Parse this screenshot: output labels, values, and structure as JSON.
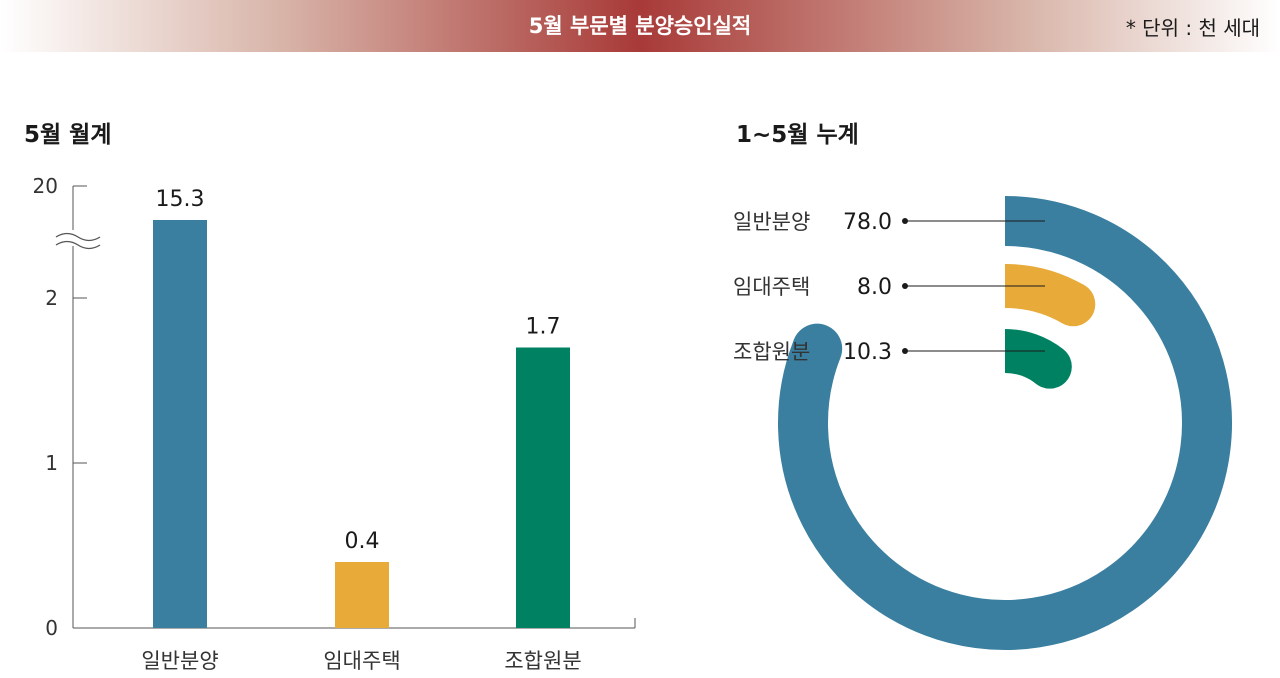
{
  "header": {
    "title": "5월 부문별 분양승인실적",
    "unit_note": "* 단위 : 천 세대"
  },
  "colors": {
    "general": "#3a7fa0",
    "rental": "#e8ab3a",
    "union": "#008262",
    "banner": "#a83a38"
  },
  "chart_data": [
    {
      "type": "bar",
      "title": "5월 월계",
      "categories": [
        "일반분양",
        "임대주택",
        "조합원분"
      ],
      "values": [
        15.3,
        0.4,
        1.7
      ],
      "value_labels": [
        "15.3",
        "0.4",
        "1.7"
      ],
      "y_ticks": [
        "0",
        "1",
        "2",
        "20"
      ],
      "axis_break": true,
      "ylim": [
        0,
        20
      ],
      "grid": false
    },
    {
      "type": "pie",
      "title": "1~5월 누계",
      "style": "radial-arc",
      "labels": [
        "일반분양",
        "임대주택",
        "조합원분"
      ],
      "values": [
        78.0,
        8.0,
        10.3
      ],
      "value_labels": [
        "78.0",
        "8.0",
        "10.3"
      ]
    }
  ]
}
